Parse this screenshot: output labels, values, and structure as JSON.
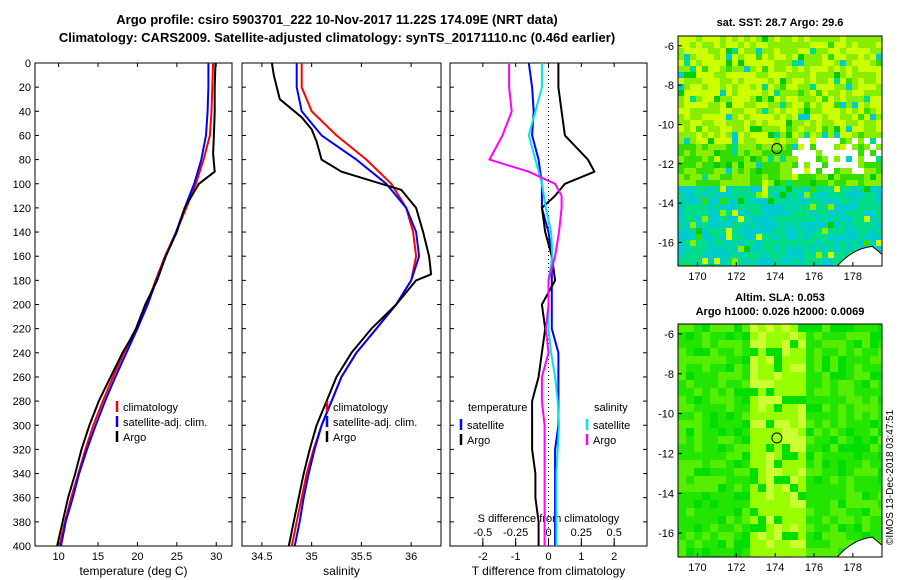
{
  "title": {
    "line1": "Argo profile: csiro 5903701_222 10-Nov-2017 11.22S 174.09E (NRT data)",
    "line2": "Climatology: CARS2009. Satellite-adjusted climatology: synTS_20171110.nc (0.46d earlier)"
  },
  "colors": {
    "climatology": "#ff0000",
    "satellite": "#0000ff",
    "argo": "#000000",
    "sal_satellite": "#00e5e5",
    "sal_argo": "#ff00ff",
    "land": "#000000"
  },
  "depth_axis": {
    "ticks": [
      0,
      20,
      40,
      60,
      80,
      100,
      120,
      140,
      160,
      180,
      200,
      220,
      240,
      260,
      280,
      300,
      320,
      340,
      360,
      380,
      400
    ],
    "ylim": [
      0,
      400
    ]
  },
  "chart_data": [
    {
      "type": "line",
      "name": "temperature",
      "xlabel": "temperature (deg C)",
      "xlim": [
        7,
        32
      ],
      "xticks": [
        10,
        15,
        20,
        25,
        30
      ],
      "legend": {
        "placement": "lower-center",
        "items": [
          "climatology",
          "satellite-adj. clim.",
          "Argo"
        ]
      },
      "series": [
        {
          "name": "climatology",
          "color_key": "climatology",
          "depth": [
            0,
            20,
            40,
            60,
            80,
            100,
            120,
            140,
            160,
            180,
            200,
            220,
            240,
            260,
            280,
            300,
            320,
            340,
            360,
            380,
            400
          ],
          "values": [
            29.6,
            29.5,
            29.4,
            29.2,
            28.4,
            27.4,
            26.2,
            24.9,
            23.5,
            22.3,
            21.2,
            19.9,
            18.3,
            16.9,
            15.6,
            14.4,
            13.4,
            12.5,
            11.6,
            10.8,
            10.1
          ]
        },
        {
          "name": "satellite-adj. clim.",
          "color_key": "satellite",
          "depth": [
            0,
            20,
            40,
            60,
            80,
            100,
            120,
            140,
            160,
            180,
            200,
            220,
            240,
            260,
            280,
            300,
            320,
            340,
            360,
            380,
            400
          ],
          "values": [
            29.0,
            29.0,
            28.9,
            28.7,
            28.1,
            27.2,
            26.0,
            24.9,
            23.6,
            22.4,
            21.3,
            20.0,
            18.6,
            17.2,
            15.9,
            14.7,
            13.6,
            12.6,
            11.8,
            10.9,
            10.3
          ]
        },
        {
          "name": "Argo",
          "color_key": "argo",
          "depth": [
            0,
            20,
            40,
            60,
            75,
            90,
            100,
            120,
            140,
            160,
            180,
            200,
            220,
            230,
            240,
            260,
            280,
            300,
            320,
            340,
            360,
            380,
            400
          ],
          "values": [
            29.9,
            29.8,
            29.8,
            29.7,
            29.6,
            29.8,
            27.8,
            26.0,
            25.0,
            23.6,
            22.5,
            21.0,
            19.8,
            19.0,
            18.1,
            16.6,
            15.1,
            13.9,
            12.9,
            12.1,
            11.2,
            10.5,
            9.8
          ]
        }
      ]
    },
    {
      "type": "line",
      "name": "salinity",
      "xlabel": "salinity",
      "xlim": [
        34.3,
        36.3
      ],
      "xticks": [
        34.5,
        35,
        35.5,
        36
      ],
      "legend": {
        "placement": "lower-center",
        "items": [
          "climatology",
          "satellite-adj. clim.",
          "Argo"
        ]
      },
      "series": [
        {
          "name": "climatology",
          "color_key": "climatology",
          "depth": [
            0,
            20,
            40,
            60,
            80,
            100,
            120,
            140,
            160,
            180,
            200,
            220,
            240,
            260,
            280,
            300,
            320,
            340,
            360,
            380,
            400
          ],
          "values": [
            34.9,
            34.9,
            35.0,
            35.25,
            35.55,
            35.8,
            35.95,
            36.02,
            36.05,
            36.0,
            35.85,
            35.65,
            35.45,
            35.3,
            35.2,
            35.1,
            35.02,
            34.95,
            34.9,
            34.85,
            34.8
          ]
        },
        {
          "name": "satellite-adj. clim.",
          "color_key": "satellite",
          "depth": [
            0,
            20,
            40,
            60,
            80,
            100,
            120,
            140,
            160,
            180,
            200,
            220,
            240,
            260,
            280,
            300,
            320,
            340,
            360,
            380,
            400
          ],
          "values": [
            34.85,
            34.85,
            34.9,
            35.1,
            35.45,
            35.75,
            35.95,
            36.05,
            36.08,
            36.0,
            35.85,
            35.65,
            35.45,
            35.3,
            35.2,
            35.1,
            35.03,
            34.97,
            34.92,
            34.88,
            34.83
          ]
        },
        {
          "name": "Argo",
          "color_key": "argo",
          "depth": [
            0,
            10,
            30,
            45,
            55,
            65,
            80,
            90,
            100,
            105,
            120,
            140,
            160,
            175,
            180,
            200,
            220,
            240,
            260,
            280,
            300,
            320,
            340,
            360,
            380,
            400
          ],
          "values": [
            34.6,
            34.62,
            34.68,
            34.9,
            35.0,
            35.05,
            35.1,
            35.3,
            35.7,
            35.9,
            36.05,
            36.12,
            36.18,
            36.2,
            36.05,
            35.85,
            35.6,
            35.4,
            35.25,
            35.15,
            35.05,
            34.98,
            34.92,
            34.87,
            34.82,
            34.77
          ]
        }
      ]
    },
    {
      "type": "line",
      "name": "differences",
      "xlabel": "T difference from climatology",
      "xlabel2": "S difference from climatology",
      "xlim": [
        -3,
        3
      ],
      "xticks": [
        -2,
        -1,
        0,
        1,
        2
      ],
      "xticks2_values": [
        -0.5,
        -0.25,
        0,
        0.25,
        0.5
      ],
      "xticks2_labels": [
        "-0.5",
        "-0.25",
        "0",
        "0.25",
        "0.5"
      ],
      "legend": {
        "placement": "lower-center",
        "temperature_title": "temperature",
        "temperature_items": [
          "satellite",
          "Argo"
        ],
        "salinity_title": "salinity",
        "salinity_items": [
          "satellite",
          "Argo"
        ]
      },
      "series": [
        {
          "name": "T satellite",
          "color_key": "satellite",
          "depth": [
            0,
            20,
            40,
            60,
            80,
            100,
            120,
            140,
            160,
            180,
            200,
            220,
            240,
            260,
            280,
            300,
            320,
            340,
            360,
            380,
            400
          ],
          "values": [
            -0.6,
            -0.5,
            -0.45,
            -0.5,
            -0.3,
            -0.2,
            -0.2,
            0,
            0.1,
            0.1,
            0.1,
            0.1,
            0.3,
            0.3,
            0.3,
            0.3,
            0.2,
            0.2,
            0.2,
            0.2,
            0.2
          ]
        },
        {
          "name": "T Argo",
          "color_key": "argo",
          "depth": [
            0,
            20,
            40,
            60,
            80,
            90,
            100,
            110,
            120,
            140,
            160,
            180,
            200,
            220,
            240,
            260,
            280,
            300,
            320,
            340,
            360,
            380,
            400
          ],
          "values": [
            0.3,
            0.3,
            0.4,
            0.5,
            1.2,
            1.4,
            0.5,
            0.2,
            -0.2,
            -0.1,
            0.1,
            0.2,
            -0.2,
            -0.1,
            -0.2,
            -0.3,
            -0.5,
            -0.5,
            -0.5,
            -0.4,
            -0.4,
            -0.3,
            -0.3
          ]
        },
        {
          "name": "S satellite",
          "color_key": "sal_satellite",
          "depth": [
            0,
            20,
            40,
            60,
            80,
            100,
            120,
            140,
            160,
            180,
            200,
            220,
            240,
            260,
            280,
            300,
            320,
            340,
            360,
            380,
            400
          ],
          "values": [
            -0.05,
            -0.05,
            -0.1,
            -0.15,
            -0.1,
            -0.05,
            -0.02,
            0.02,
            0.03,
            0,
            0,
            0,
            0.02,
            0.05,
            0.07,
            0.08,
            0.07,
            0.06,
            0.06,
            0.06,
            0.06
          ]
        },
        {
          "name": "S Argo",
          "color_key": "sal_argo",
          "depth": [
            0,
            20,
            40,
            60,
            80,
            90,
            100,
            110,
            120,
            140,
            160,
            180,
            200,
            220,
            240,
            260,
            280,
            300,
            320,
            340,
            360,
            380,
            400
          ],
          "values": [
            -0.3,
            -0.3,
            -0.28,
            -0.35,
            -0.45,
            -0.15,
            0.05,
            0.1,
            0.1,
            0.08,
            0.05,
            0,
            0,
            -0.02,
            0,
            -0.05,
            -0.05,
            -0.03,
            -0.03,
            -0.03,
            -0.03,
            -0.03,
            -0.03
          ]
        }
      ]
    }
  ],
  "maps": [
    {
      "name": "sst-map",
      "title": "sat. SST: 28.7 Argo: 29.6",
      "xlim": [
        169,
        179.5
      ],
      "ylim": [
        -17.2,
        -5.5
      ],
      "xticks": [
        170,
        172,
        174,
        176,
        178
      ],
      "yticks": [
        -6,
        -8,
        -10,
        -12,
        -14,
        -16
      ],
      "marker": [
        174.09,
        -11.22
      ],
      "palette": [
        "#00cc00",
        "#33dd00",
        "#88ee00",
        "#ccff00",
        "#00dd88",
        "#00cccc"
      ],
      "land_color": "#ffffff"
    },
    {
      "name": "sla-map",
      "title1": "Altim. SLA: 0.053",
      "title2": "Argo h1000: 0.026 h2000: 0.0069",
      "xlim": [
        169,
        179.5
      ],
      "ylim": [
        -17.2,
        -5.5
      ],
      "xticks": [
        170,
        172,
        174,
        176,
        178
      ],
      "yticks": [
        -6,
        -8,
        -10,
        -12,
        -14,
        -16
      ],
      "marker": [
        174.09,
        -11.22
      ],
      "palette": [
        "#00dd00",
        "#22e600",
        "#55ee00",
        "#99ff00",
        "#ccff33"
      ]
    }
  ],
  "side_label": "©IMOS 13-Dec-2018 03:47:51"
}
